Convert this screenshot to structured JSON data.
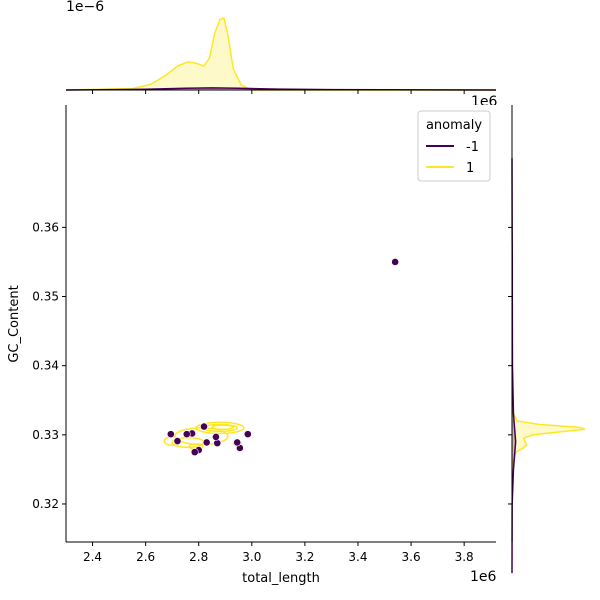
{
  "chart_data": {
    "type": "scatter",
    "title": "",
    "xlabel": "total_length",
    "ylabel": "GC_Content",
    "x_offset_label": "1e6",
    "top_offset_label": "1e−6",
    "right_offset_label": "1e6",
    "xlim": [
      2.3,
      3.92
    ],
    "ylim": [
      0.3145,
      0.3777
    ],
    "xticks": [
      "2.4",
      "2.6",
      "2.8",
      "3.0",
      "3.2",
      "3.4",
      "3.6",
      "3.8"
    ],
    "xtick_values": [
      2.4,
      2.6,
      2.8,
      3.0,
      3.2,
      3.4,
      3.6,
      3.8
    ],
    "yticks": [
      "0.32",
      "0.33",
      "0.34",
      "0.35",
      "0.36"
    ],
    "ytick_values": [
      0.32,
      0.33,
      0.34,
      0.35,
      0.36
    ],
    "grid": false,
    "legend": {
      "title": "anomaly",
      "placement": "top-right",
      "entries": [
        {
          "label": "-1",
          "color": "#440154"
        },
        {
          "label": "1",
          "color": "#fde725"
        }
      ]
    },
    "series": [
      {
        "name": "-1",
        "color": "#440154",
        "points": [
          [
            3.54,
            0.355
          ],
          [
            2.985,
            0.3301
          ],
          [
            2.955,
            0.3281
          ],
          [
            2.945,
            0.3289
          ],
          [
            2.87,
            0.3288
          ],
          [
            2.865,
            0.3297
          ],
          [
            2.83,
            0.3289
          ],
          [
            2.82,
            0.3312
          ],
          [
            2.8,
            0.3278
          ],
          [
            2.785,
            0.3275
          ],
          [
            2.775,
            0.3302
          ],
          [
            2.755,
            0.3301
          ],
          [
            2.72,
            0.3291
          ],
          [
            2.695,
            0.3301
          ]
        ]
      },
      {
        "name": "1",
        "color": "#fde725",
        "kde_contours": [
          {
            "cx": 2.88,
            "cy": 0.331,
            "rx": 0.09,
            "ry": 0.0008
          },
          {
            "cx": 2.88,
            "cy": 0.331,
            "rx": 0.065,
            "ry": 0.0005
          },
          {
            "cx": 2.89,
            "cy": 0.3311,
            "rx": 0.04,
            "ry": 0.0003
          },
          {
            "cx": 2.81,
            "cy": 0.3298,
            "rx": 0.1,
            "ry": 0.0012
          },
          {
            "cx": 2.76,
            "cy": 0.3289,
            "rx": 0.06,
            "ry": 0.0007
          },
          {
            "cx": 2.7,
            "cy": 0.3291,
            "rx": 0.03,
            "ry": 0.0006
          },
          {
            "cx": 2.945,
            "cy": 0.3288,
            "rx": 0.015,
            "ry": 0.0004
          },
          {
            "cx": 2.79,
            "cy": 0.3283,
            "rx": 0.025,
            "ry": 0.0004
          }
        ],
        "top_marginal_density": {
          "x": [
            2.3,
            2.55,
            2.62,
            2.68,
            2.72,
            2.76,
            2.79,
            2.82,
            2.84,
            2.86,
            2.88,
            2.895,
            2.91,
            2.93,
            2.96,
            3.0,
            3.92
          ],
          "y": [
            0.0,
            0.02,
            0.08,
            0.22,
            0.34,
            0.4,
            0.38,
            0.34,
            0.45,
            0.8,
            1.0,
            1.02,
            0.78,
            0.3,
            0.07,
            0.0,
            0.0
          ]
        },
        "right_marginal_density": {
          "y": [
            0.3255,
            0.3275,
            0.328,
            0.3285,
            0.329,
            0.3295,
            0.33,
            0.3305,
            0.3308,
            0.3311,
            0.3315,
            0.332,
            0.3335
          ],
          "x": [
            0.0,
            0.05,
            0.14,
            0.2,
            0.18,
            0.16,
            0.28,
            0.72,
            1.0,
            0.92,
            0.38,
            0.07,
            0.0
          ]
        }
      }
    ],
    "anomaly_marginal_density": {
      "top": {
        "x": [
          2.3,
          2.6,
          2.75,
          2.85,
          2.95,
          3.1,
          3.3,
          3.5,
          3.7,
          3.92
        ],
        "y": [
          0.0,
          0.01,
          0.025,
          0.03,
          0.025,
          0.012,
          0.005,
          0.004,
          0.001,
          0.0
        ]
      },
      "right": {
        "y": [
          0.31,
          0.32,
          0.325,
          0.329,
          0.333,
          0.34,
          0.35,
          0.355,
          0.36,
          0.37
        ],
        "x": [
          0.0,
          0.002,
          0.02,
          0.05,
          0.02,
          0.006,
          0.004,
          0.004,
          0.002,
          0.0
        ]
      }
    }
  }
}
